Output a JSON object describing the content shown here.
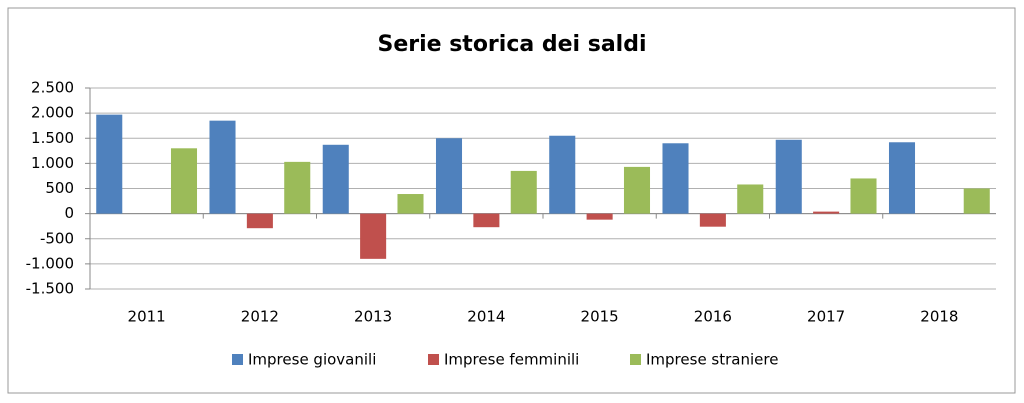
{
  "chart_data": {
    "type": "bar",
    "title": "Serie storica dei saldi",
    "categories": [
      "2011",
      "2012",
      "2013",
      "2014",
      "2015",
      "2016",
      "2017",
      "2018"
    ],
    "series": [
      {
        "name": "Imprese giovanili",
        "color": "#4f81bd",
        "values": [
          1970,
          1850,
          1370,
          1500,
          1550,
          1400,
          1470,
          1420
        ]
      },
      {
        "name": "Imprese femminili",
        "color": "#c0504d",
        "values": [
          0,
          -290,
          -900,
          -270,
          -120,
          -260,
          40,
          0
        ]
      },
      {
        "name": "Imprese straniere",
        "color": "#9bbb59",
        "values": [
          1300,
          1030,
          390,
          850,
          930,
          580,
          700,
          500
        ]
      }
    ],
    "ylim": [
      -1500,
      2500
    ],
    "yticks": [
      {
        "value": -1500,
        "label": "-1.500"
      },
      {
        "value": -1000,
        "label": "-1.000"
      },
      -500,
      0,
      500,
      {
        "value": 1000,
        "label": "1.000"
      },
      {
        "value": 1500,
        "label": "1.500"
      },
      {
        "value": 2000,
        "label": "2.000"
      },
      {
        "value": 2500,
        "label": "2.500"
      }
    ],
    "grid": true,
    "legend": "bottom"
  }
}
